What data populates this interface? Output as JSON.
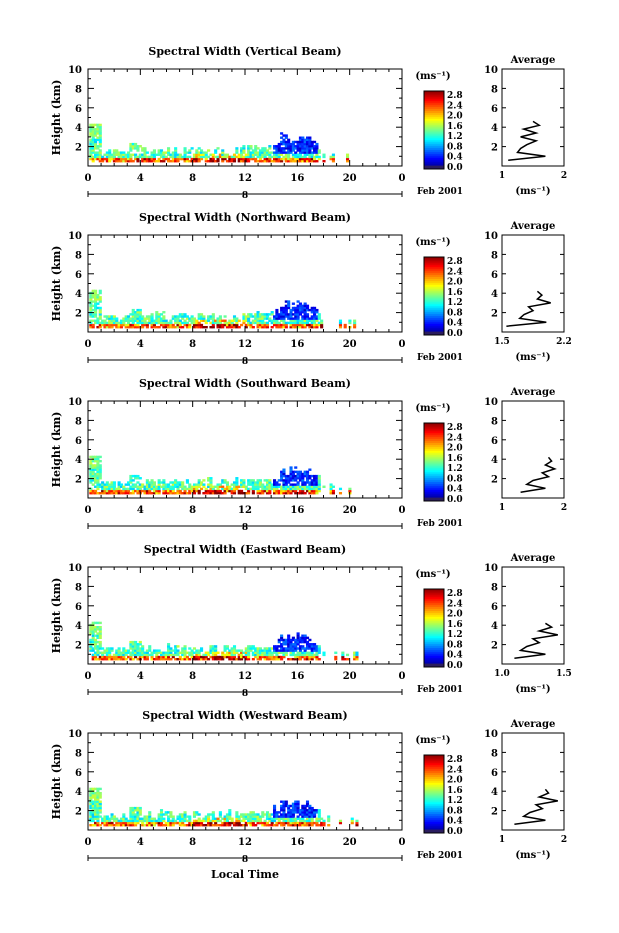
{
  "figure": {
    "xlabel": "Local Time",
    "x_ticks": [
      "0",
      "4",
      "8",
      "12",
      "16",
      "20",
      "0"
    ],
    "date_tick": "8",
    "date_label": "Feb 2001",
    "ylabel": "Height (km)",
    "y_ticks": [
      "2",
      "4",
      "6",
      "8",
      "10"
    ],
    "colorbar_unit": "(ms⁻¹)",
    "colorbar_ticks": [
      "0.0",
      "0.4",
      "0.8",
      "1.2",
      "1.6",
      "2.0",
      "2.4",
      "2.8"
    ],
    "avg_title": "Average",
    "avg_unit": "(ms⁻¹)"
  },
  "chart_data": [
    {
      "type": "heatmap",
      "title": "Spectral Width (Vertical Beam)",
      "xlabel": "",
      "ylabel": "Height (km)",
      "xlim": [
        0,
        24
      ],
      "ylim": [
        0,
        10
      ],
      "colorbar_range": [
        0.0,
        2.8
      ],
      "average_profile": {
        "xlabel": "(ms⁻¹)",
        "xlim": [
          1,
          2
        ],
        "x_ticks": [
          "1",
          "2"
        ],
        "heights_km": [
          0.6,
          1.0,
          1.4,
          1.8,
          2.2,
          2.6,
          3.0,
          3.4,
          3.8,
          4.2,
          4.6
        ],
        "values": [
          1.1,
          1.7,
          1.25,
          1.3,
          1.4,
          1.55,
          1.3,
          1.55,
          1.35,
          1.6,
          1.5
        ]
      }
    },
    {
      "type": "heatmap",
      "title": "Spectral Width (Northward Beam)",
      "xlabel": "",
      "ylabel": "Height (km)",
      "xlim": [
        0,
        24
      ],
      "ylim": [
        0,
        10
      ],
      "colorbar_range": [
        0.0,
        2.8
      ],
      "average_profile": {
        "xlabel": "(ms⁻¹)",
        "xlim": [
          1.5,
          2.2
        ],
        "x_ticks": [
          "1.5",
          "2.2"
        ],
        "heights_km": [
          0.6,
          1.0,
          1.4,
          1.8,
          2.2,
          2.6,
          3.0,
          3.4,
          3.8,
          4.2
        ],
        "values": [
          1.55,
          2.0,
          1.7,
          1.75,
          1.85,
          1.8,
          2.05,
          1.9,
          1.95,
          1.9
        ]
      }
    },
    {
      "type": "heatmap",
      "title": "Spectral Width (Southward Beam)",
      "xlabel": "",
      "ylabel": "Height (km)",
      "xlim": [
        0,
        24
      ],
      "ylim": [
        0,
        10
      ],
      "colorbar_range": [
        0.0,
        2.8
      ],
      "average_profile": {
        "xlabel": "",
        "xlim": [
          1,
          2
        ],
        "x_ticks": [
          "1",
          "2"
        ],
        "heights_km": [
          0.6,
          1.0,
          1.4,
          1.8,
          2.2,
          2.6,
          3.0,
          3.4,
          3.8,
          4.2
        ],
        "values": [
          1.3,
          1.7,
          1.4,
          1.5,
          1.75,
          1.65,
          1.85,
          1.7,
          1.8,
          1.75
        ]
      }
    },
    {
      "type": "heatmap",
      "title": "Spectral Width (Eastward Beam)",
      "xlabel": "",
      "ylabel": "Height (km)",
      "xlim": [
        0,
        24
      ],
      "ylim": [
        0,
        10
      ],
      "colorbar_range": [
        0.0,
        2.8
      ],
      "average_profile": {
        "xlabel": "(ms⁻¹)",
        "xlim": [
          1.0,
          1.5
        ],
        "x_ticks": [
          "1.0",
          "1.5"
        ],
        "heights_km": [
          0.6,
          1.0,
          1.4,
          1.8,
          2.2,
          2.6,
          3.0,
          3.4,
          3.8,
          4.2
        ],
        "values": [
          1.1,
          1.35,
          1.15,
          1.2,
          1.3,
          1.25,
          1.45,
          1.3,
          1.4,
          1.35
        ]
      }
    },
    {
      "type": "heatmap",
      "title": "Spectral Width (Westward Beam)",
      "xlabel": "Local Time",
      "ylabel": "Height (km)",
      "xlim": [
        0,
        24
      ],
      "ylim": [
        0,
        10
      ],
      "colorbar_range": [
        0.0,
        2.8
      ],
      "average_profile": {
        "xlabel": "(ms⁻¹)",
        "xlim": [
          1,
          2
        ],
        "x_ticks": [
          "1",
          "2"
        ],
        "heights_km": [
          0.6,
          1.0,
          1.4,
          1.8,
          2.2,
          2.6,
          3.0,
          3.4,
          3.8,
          4.2
        ],
        "values": [
          1.2,
          1.7,
          1.35,
          1.45,
          1.65,
          1.55,
          1.9,
          1.6,
          1.75,
          1.7
        ]
      }
    }
  ]
}
